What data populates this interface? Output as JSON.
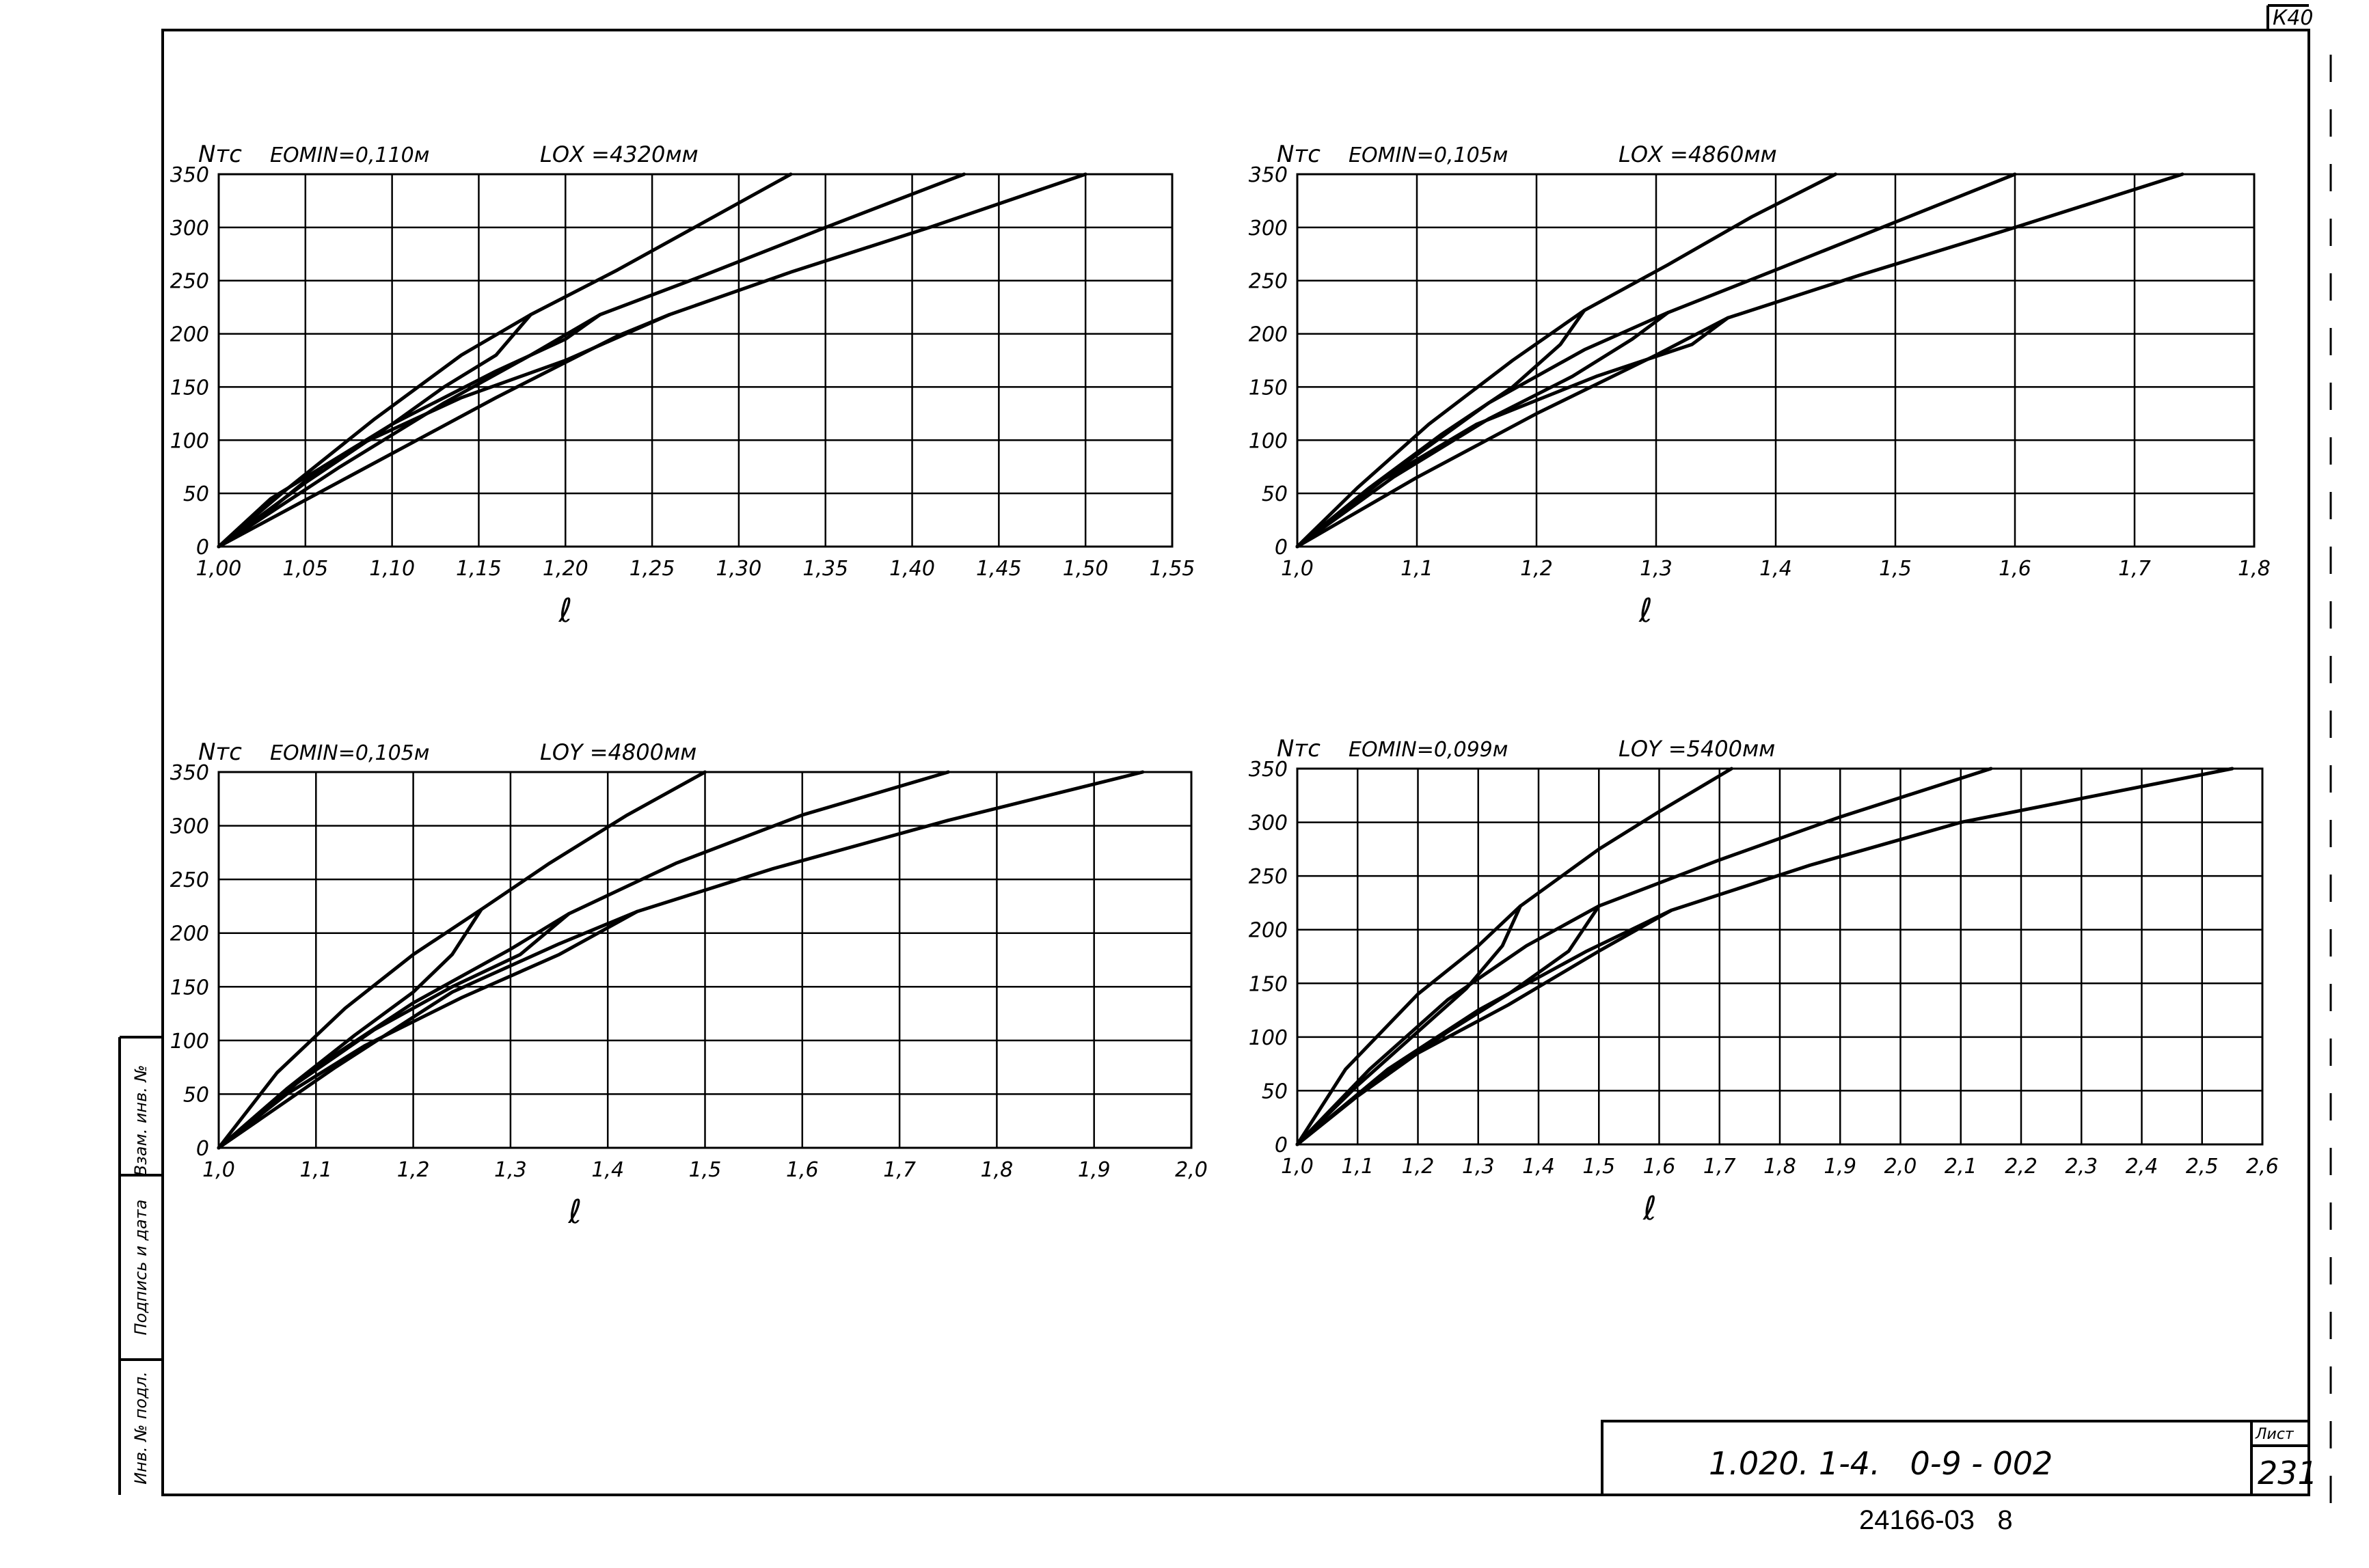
{
  "sheet": {
    "corner_code": "К40",
    "doc_code": "1.020. 1-4.   0-9 - 002",
    "sheet_label": "Лист",
    "sheet_number": "231",
    "archive_number": "24166-03   8",
    "side_labels": [
      "Взам. инв. №",
      "Подпись и дата",
      "Инв. № подл."
    ]
  },
  "chart_data": [
    {
      "type": "line",
      "ylabel": "Nтс",
      "xlabel": "ℓ",
      "params": {
        "emin": "ЕОМIN=0,110м",
        "l": "LОХ =4320мм"
      },
      "xlim": [
        1.0,
        1.55
      ],
      "ylim": [
        0,
        350
      ],
      "xticks": [
        1.0,
        1.05,
        1.1,
        1.15,
        1.2,
        1.25,
        1.3,
        1.35,
        1.4,
        1.45,
        1.5,
        1.55
      ],
      "xtick_labels": [
        "1,00",
        "1,05",
        "1,10",
        "1,15",
        "1,20",
        "1,25",
        "1,30",
        "1,35",
        "1,40",
        "1,45",
        "1,50",
        "1,55"
      ],
      "yticks": [
        0,
        50,
        100,
        150,
        200,
        250,
        300,
        350
      ],
      "ytick_labels": [
        "0",
        "50",
        "100",
        "150",
        "200",
        "250",
        "300",
        "350"
      ],
      "grid": true,
      "series": [
        {
          "x": [
            1.0,
            1.04,
            1.09,
            1.14,
            1.18,
            1.23,
            1.28,
            1.33
          ],
          "y": [
            0,
            55,
            120,
            180,
            218,
            260,
            305,
            350
          ]
        },
        {
          "x": [
            1.18,
            1.16,
            1.13,
            1.1,
            1.06,
            1.03,
            1.0
          ],
          "y": [
            218,
            180,
            150,
            115,
            75,
            35,
            0
          ]
        },
        {
          "x": [
            1.0,
            1.07,
            1.13,
            1.18,
            1.22,
            1.28,
            1.35,
            1.43
          ],
          "y": [
            0,
            75,
            135,
            180,
            218,
            255,
            300,
            350
          ]
        },
        {
          "x": [
            1.22,
            1.2,
            1.16,
            1.1,
            1.05,
            1.0
          ],
          "y": [
            218,
            195,
            165,
            115,
            60,
            0
          ]
        },
        {
          "x": [
            1.0,
            1.08,
            1.16,
            1.23,
            1.26,
            1.33,
            1.41,
            1.5
          ],
          "y": [
            0,
            70,
            140,
            198,
            218,
            258,
            300,
            350
          ]
        },
        {
          "x": [
            1.26,
            1.2,
            1.14,
            1.08,
            1.03,
            1.0
          ],
          "y": [
            218,
            175,
            140,
            95,
            45,
            0
          ]
        }
      ]
    },
    {
      "type": "line",
      "ylabel": "Nтс",
      "xlabel": "ℓ",
      "params": {
        "emin": "ЕОМIN=0,105м",
        "l": "LОХ =4860мм"
      },
      "xlim": [
        1.0,
        1.8
      ],
      "ylim": [
        0,
        350
      ],
      "xticks": [
        1.0,
        1.1,
        1.2,
        1.3,
        1.4,
        1.5,
        1.6,
        1.7,
        1.8
      ],
      "xtick_labels": [
        "1,0",
        "1,1",
        "1,2",
        "1,3",
        "1,4",
        "1,5",
        "1,6",
        "1,7",
        "1,8"
      ],
      "yticks": [
        0,
        50,
        100,
        150,
        200,
        250,
        300,
        350
      ],
      "ytick_labels": [
        "0",
        "50",
        "100",
        "150",
        "200",
        "250",
        "300",
        "350"
      ],
      "grid": true,
      "series": [
        {
          "x": [
            1.0,
            1.05,
            1.11,
            1.18,
            1.24,
            1.31,
            1.38,
            1.45
          ],
          "y": [
            0,
            55,
            115,
            175,
            222,
            265,
            310,
            350
          ]
        },
        {
          "x": [
            1.24,
            1.22,
            1.18,
            1.12,
            1.06,
            1.0
          ],
          "y": [
            222,
            190,
            150,
            105,
            55,
            0
          ]
        },
        {
          "x": [
            1.0,
            1.08,
            1.16,
            1.24,
            1.31,
            1.4,
            1.5,
            1.6
          ],
          "y": [
            0,
            70,
            135,
            185,
            220,
            260,
            305,
            350
          ]
        },
        {
          "x": [
            1.31,
            1.28,
            1.23,
            1.16,
            1.08,
            1.0
          ],
          "y": [
            220,
            195,
            160,
            120,
            65,
            0
          ]
        },
        {
          "x": [
            1.0,
            1.1,
            1.2,
            1.3,
            1.36,
            1.47,
            1.6,
            1.74
          ],
          "y": [
            0,
            65,
            125,
            180,
            215,
            255,
            300,
            350
          ]
        },
        {
          "x": [
            1.36,
            1.33,
            1.25,
            1.15,
            1.06,
            1.0
          ],
          "y": [
            215,
            190,
            160,
            115,
            55,
            0
          ]
        }
      ]
    },
    {
      "type": "line",
      "ylabel": "Nтс",
      "xlabel": "ℓ",
      "params": {
        "emin": "ЕОМIN=0,105м",
        "l": "LОY =4800мм"
      },
      "xlim": [
        1.0,
        2.0
      ],
      "ylim": [
        0,
        350
      ],
      "xticks": [
        1.0,
        1.1,
        1.2,
        1.3,
        1.4,
        1.5,
        1.6,
        1.7,
        1.8,
        1.9,
        2.0
      ],
      "xtick_labels": [
        "1,0",
        "1,1",
        "1,2",
        "1,3",
        "1,4",
        "1,5",
        "1,6",
        "1,7",
        "1,8",
        "1,9",
        "2,0"
      ],
      "yticks": [
        0,
        50,
        100,
        150,
        200,
        250,
        300,
        350
      ],
      "ytick_labels": [
        "0",
        "50",
        "100",
        "150",
        "200",
        "250",
        "300",
        "350"
      ],
      "grid": true,
      "series": [
        {
          "x": [
            1.0,
            1.06,
            1.13,
            1.2,
            1.27,
            1.34,
            1.42,
            1.5
          ],
          "y": [
            0,
            70,
            130,
            180,
            222,
            265,
            310,
            350
          ]
        },
        {
          "x": [
            1.27,
            1.24,
            1.2,
            1.14,
            1.07,
            1.0
          ],
          "y": [
            222,
            180,
            145,
            105,
            55,
            0
          ]
        },
        {
          "x": [
            1.0,
            1.1,
            1.2,
            1.3,
            1.36,
            1.47,
            1.6,
            1.75
          ],
          "y": [
            0,
            75,
            135,
            185,
            218,
            265,
            310,
            350
          ]
        },
        {
          "x": [
            1.36,
            1.31,
            1.24,
            1.16,
            1.08,
            1.0
          ],
          "y": [
            218,
            180,
            150,
            110,
            60,
            0
          ]
        },
        {
          "x": [
            1.0,
            1.12,
            1.24,
            1.35,
            1.43,
            1.57,
            1.75,
            1.95
          ],
          "y": [
            0,
            75,
            145,
            190,
            220,
            260,
            305,
            350
          ]
        },
        {
          "x": [
            1.43,
            1.35,
            1.25,
            1.15,
            1.07,
            1.0
          ],
          "y": [
            220,
            180,
            140,
            95,
            50,
            0
          ]
        }
      ]
    },
    {
      "type": "line",
      "ylabel": "Nтс",
      "xlabel": "ℓ",
      "params": {
        "emin": "ЕОМIN=0,099м",
        "l": "LОY =5400мм"
      },
      "xlim": [
        1.0,
        2.6
      ],
      "ylim": [
        0,
        350
      ],
      "xticks": [
        1.0,
        1.1,
        1.2,
        1.3,
        1.4,
        1.5,
        1.6,
        1.7,
        1.8,
        1.9,
        2.0,
        2.1,
        2.2,
        2.3,
        2.4,
        2.5,
        2.6
      ],
      "xtick_labels": [
        "1,0",
        "1,1",
        "1,2",
        "1,3",
        "1,4",
        "1,5",
        "1,6",
        "1,7",
        "1,8",
        "1,9",
        "2,0",
        "2,1",
        "2,2",
        "2,3",
        "2,4",
        "2,5",
        "2,6"
      ],
      "yticks": [
        0,
        50,
        100,
        150,
        200,
        250,
        300,
        350
      ],
      "ytick_labels": [
        "0",
        "50",
        "100",
        "150",
        "200",
        "250",
        "300",
        "350"
      ],
      "grid": true,
      "series": [
        {
          "x": [
            1.0,
            1.08,
            1.2,
            1.3,
            1.37,
            1.5,
            1.6,
            1.72
          ],
          "y": [
            0,
            70,
            140,
            185,
            222,
            275,
            310,
            350
          ]
        },
        {
          "x": [
            1.37,
            1.34,
            1.28,
            1.2,
            1.1,
            1.0
          ],
          "y": [
            222,
            185,
            145,
            105,
            55,
            0
          ]
        },
        {
          "x": [
            1.0,
            1.12,
            1.25,
            1.38,
            1.5,
            1.7,
            1.9,
            2.15
          ],
          "y": [
            0,
            70,
            135,
            185,
            222,
            265,
            305,
            350
          ]
        },
        {
          "x": [
            1.5,
            1.45,
            1.35,
            1.25,
            1.12,
            1.0
          ],
          "y": [
            222,
            180,
            140,
            105,
            55,
            0
          ]
        },
        {
          "x": [
            1.0,
            1.15,
            1.3,
            1.48,
            1.62,
            1.85,
            2.1,
            2.55
          ],
          "y": [
            0,
            70,
            125,
            180,
            218,
            260,
            300,
            350
          ]
        },
        {
          "x": [
            1.62,
            1.5,
            1.35,
            1.2,
            1.1,
            1.0
          ],
          "y": [
            218,
            180,
            130,
            85,
            45,
            0
          ]
        }
      ]
    }
  ]
}
